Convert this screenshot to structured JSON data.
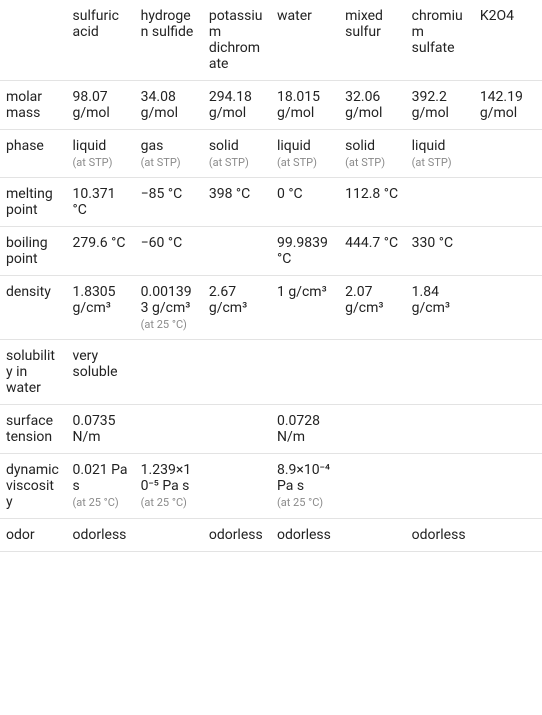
{
  "table": {
    "columns": [
      "sulfuric acid",
      "hydrogen sulfide",
      "potassium dichromate",
      "water",
      "mixed sulfur",
      "chromium sulfate",
      "K2O4"
    ],
    "rows": [
      {
        "label": "molar mass",
        "cells": [
          {
            "value": "98.07 g/mol"
          },
          {
            "value": "34.08 g/mol"
          },
          {
            "value": "294.18 g/mol"
          },
          {
            "value": "18.015 g/mol"
          },
          {
            "value": "32.06 g/mol"
          },
          {
            "value": "392.2 g/mol"
          },
          {
            "value": "142.19 g/mol"
          }
        ]
      },
      {
        "label": "phase",
        "cells": [
          {
            "value": "liquid",
            "note": "(at STP)"
          },
          {
            "value": "gas",
            "note": "(at STP)"
          },
          {
            "value": "solid",
            "note": "(at STP)"
          },
          {
            "value": "liquid",
            "note": "(at STP)"
          },
          {
            "value": "solid",
            "note": "(at STP)"
          },
          {
            "value": "liquid",
            "note": "(at STP)"
          },
          {
            "value": ""
          }
        ]
      },
      {
        "label": "melting point",
        "cells": [
          {
            "value": "10.371 °C"
          },
          {
            "value": "−85 °C"
          },
          {
            "value": "398 °C"
          },
          {
            "value": "0 °C"
          },
          {
            "value": "112.8 °C"
          },
          {
            "value": ""
          },
          {
            "value": ""
          }
        ]
      },
      {
        "label": "boiling point",
        "cells": [
          {
            "value": "279.6 °C"
          },
          {
            "value": "−60 °C"
          },
          {
            "value": ""
          },
          {
            "value": "99.9839 °C"
          },
          {
            "value": "444.7 °C"
          },
          {
            "value": "330 °C"
          },
          {
            "value": ""
          }
        ]
      },
      {
        "label": "density",
        "cells": [
          {
            "value": "1.8305 g/cm³"
          },
          {
            "value": "0.001393 g/cm³",
            "note": "(at 25 °C)"
          },
          {
            "value": "2.67 g/cm³"
          },
          {
            "value": "1 g/cm³"
          },
          {
            "value": "2.07 g/cm³"
          },
          {
            "value": "1.84 g/cm³"
          },
          {
            "value": ""
          }
        ]
      },
      {
        "label": "solubility in water",
        "cells": [
          {
            "value": "very soluble"
          },
          {
            "value": ""
          },
          {
            "value": ""
          },
          {
            "value": ""
          },
          {
            "value": ""
          },
          {
            "value": ""
          },
          {
            "value": ""
          }
        ]
      },
      {
        "label": "surface tension",
        "cells": [
          {
            "value": "0.0735 N/m"
          },
          {
            "value": ""
          },
          {
            "value": ""
          },
          {
            "value": "0.0728 N/m"
          },
          {
            "value": ""
          },
          {
            "value": ""
          },
          {
            "value": ""
          }
        ]
      },
      {
        "label": "dynamic viscosity",
        "cells": [
          {
            "value": "0.021 Pa s",
            "note": "(at 25 °C)"
          },
          {
            "value": "1.239×10⁻⁵ Pa s",
            "note": "(at 25 °C)"
          },
          {
            "value": ""
          },
          {
            "value": "8.9×10⁻⁴ Pa s",
            "note": "(at 25 °C)"
          },
          {
            "value": ""
          },
          {
            "value": ""
          },
          {
            "value": ""
          }
        ]
      },
      {
        "label": "odor",
        "cells": [
          {
            "value": "odorless"
          },
          {
            "value": ""
          },
          {
            "value": "odorless"
          },
          {
            "value": "odorless"
          },
          {
            "value": ""
          },
          {
            "value": "odorless"
          },
          {
            "value": ""
          }
        ]
      }
    ],
    "colors": {
      "border": "#e3e3e3",
      "text": "#222222",
      "note": "#8a8a8a",
      "background": "#ffffff"
    },
    "font_size_main": 14,
    "font_size_note": 11
  }
}
